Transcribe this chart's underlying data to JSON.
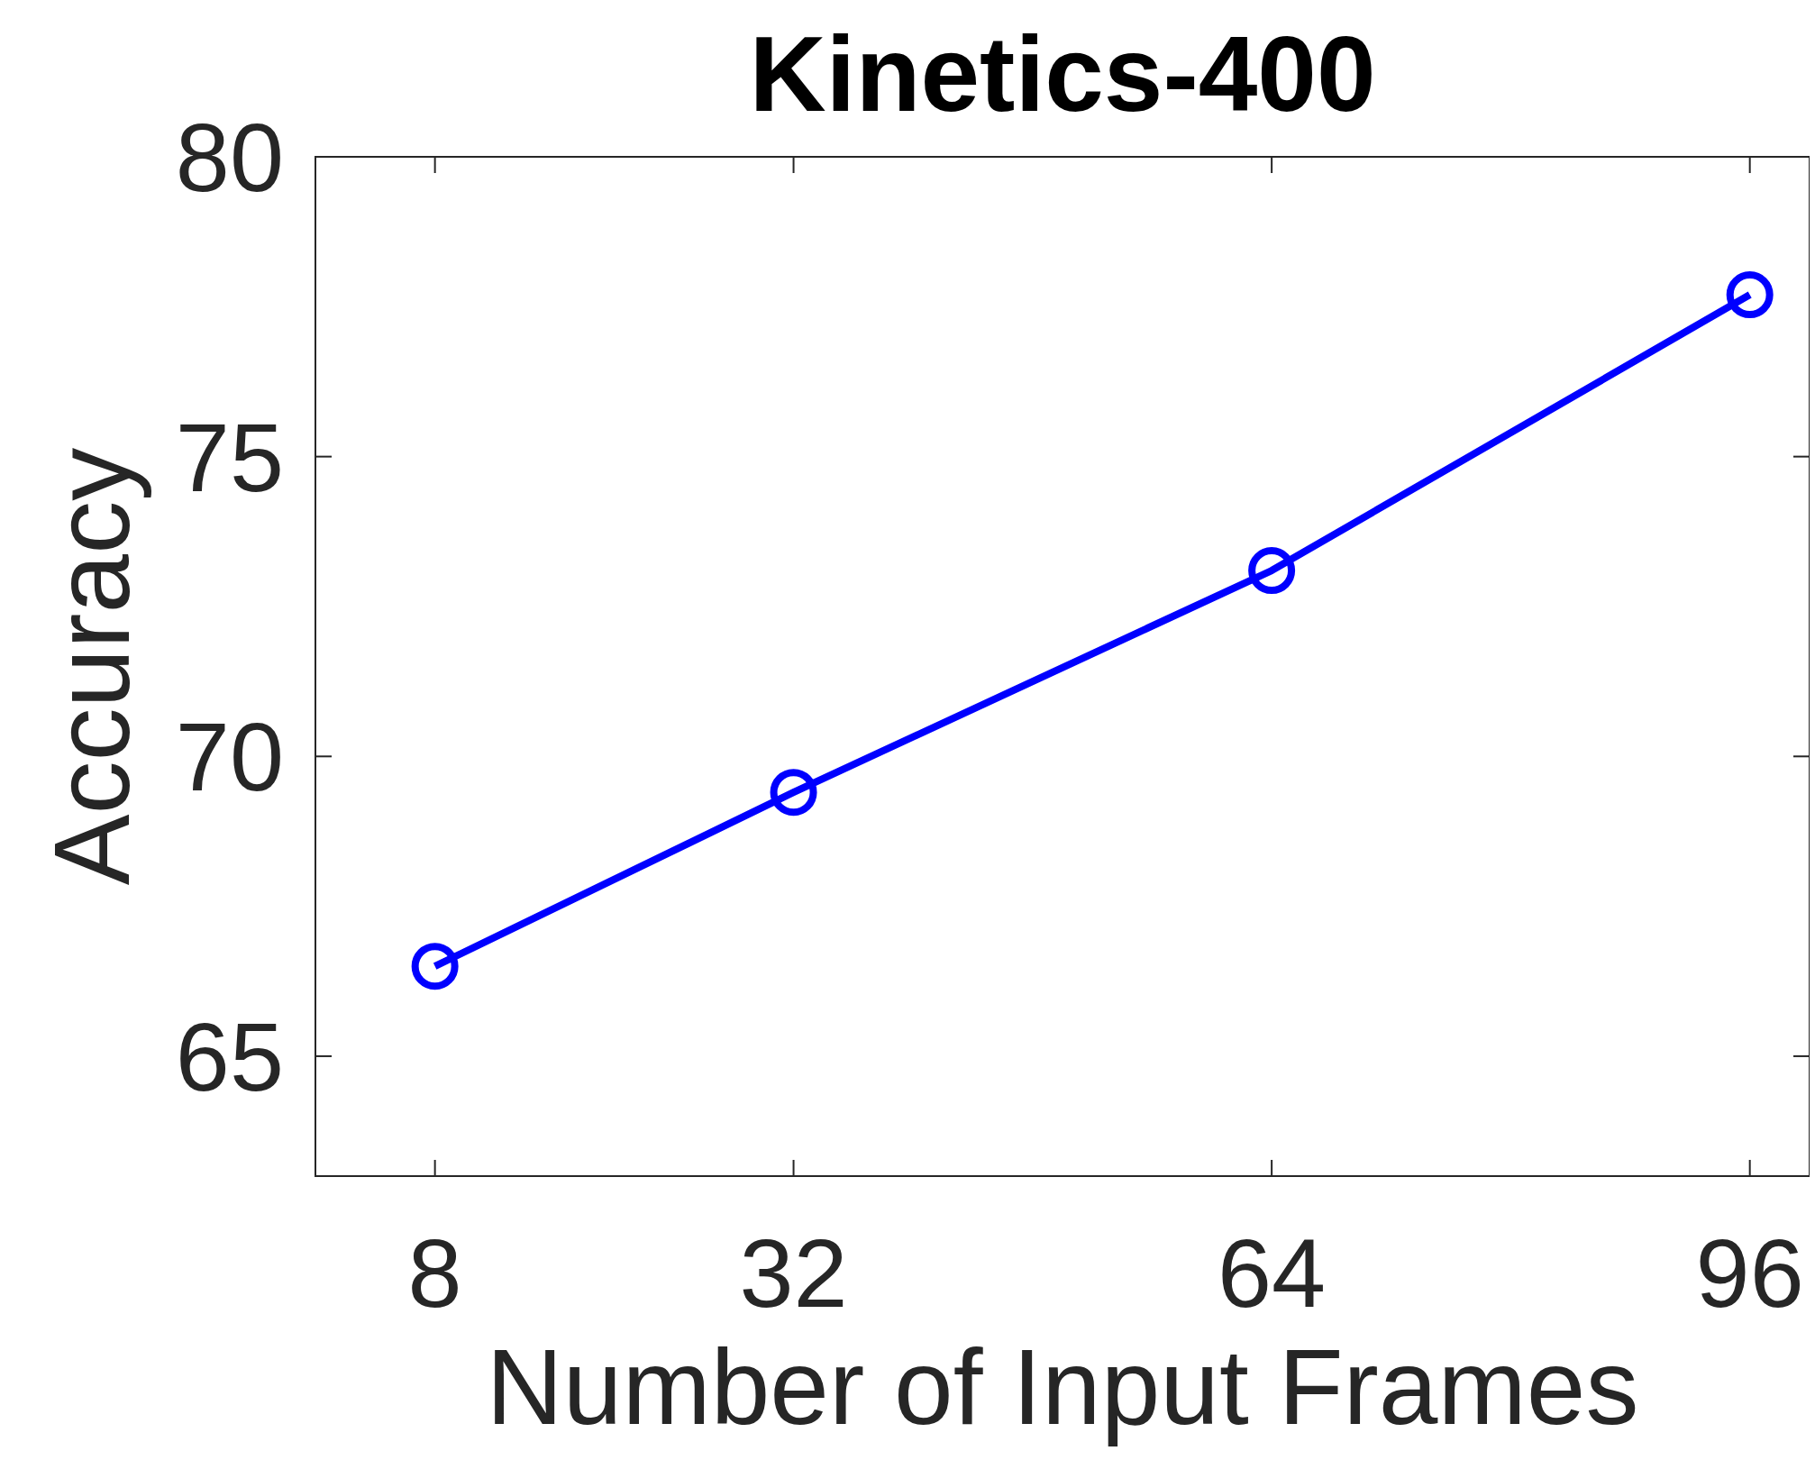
{
  "chart_data": {
    "type": "line",
    "title": "Kinetics-400",
    "xlabel": "Number of Input Frames",
    "ylabel": "Accuracy",
    "x": [
      8,
      32,
      64,
      96
    ],
    "series": [
      {
        "color": "#0000ff",
        "values": [
          66.5,
          69.4,
          73.1,
          77.7
        ]
      }
    ],
    "xlim": [
      0,
      100
    ],
    "xticks": [
      8,
      32,
      64,
      96
    ],
    "ylim": [
      63,
      80
    ],
    "yticks": [
      65,
      70,
      75,
      80
    ],
    "grid": false,
    "marker": "circle",
    "line_style": "solid"
  }
}
